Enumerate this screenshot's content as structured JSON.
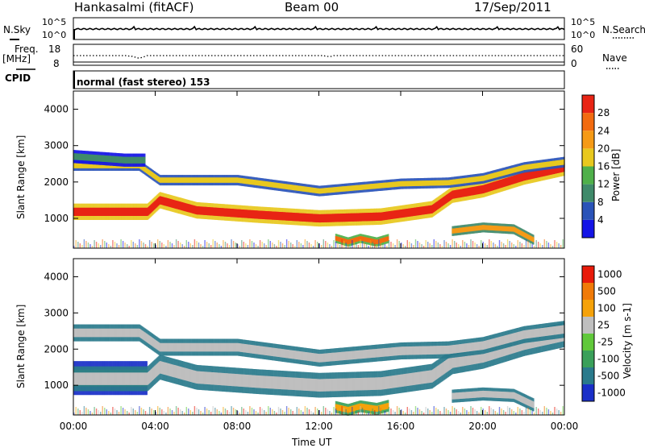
{
  "header": {
    "station": "Hankasalmi (fitACF)",
    "beam": "Beam 00",
    "date": "17/Sep/2011"
  },
  "nsky_panel": {
    "label": "N.Sky",
    "right_label": "N.Search",
    "tick_top": "10^5",
    "tick_bottom": "10^0"
  },
  "freq_panel": {
    "label_line1": "Freq.",
    "label_line2": "[MHz]",
    "tick_top": "18",
    "tick_bottom": "8",
    "nave_label": "Nave",
    "nave_tick_top": "60",
    "nave_tick_bottom": "0"
  },
  "cpid_panel": {
    "label": "CPID",
    "mode_text": "normal (fast stereo) 153"
  },
  "chart_data": [
    {
      "type": "heatmap",
      "name": "power",
      "ylabel": "Slant Range [km]",
      "yticks": [
        "1000",
        "2000",
        "3000",
        "4000"
      ],
      "ylim": [
        180,
        4500
      ],
      "colorbar_label": "Power [dB]",
      "colorbar_ticks": [
        "4",
        "8",
        "12",
        "16",
        "20",
        "24",
        "28"
      ],
      "colors": [
        "#1414e6",
        "#2a53b8",
        "#3f8a6a",
        "#4fb04a",
        "#e8c81e",
        "#f59a16",
        "#f26b10",
        "#e82414"
      ],
      "bands": [
        {
          "t": [
            0,
            3.6,
            4.2,
            6,
            9,
            12,
            15,
            17.5,
            18.5,
            20,
            22,
            24
          ],
          "r": [
            1180,
            1180,
            1500,
            1220,
            1100,
            1000,
            1050,
            1250,
            1650,
            1800,
            2150,
            2400
          ],
          "width": 250,
          "level": 7
        },
        {
          "t": [
            0,
            3.2,
            4.2,
            8,
            12,
            16,
            18.3,
            20,
            22,
            24
          ],
          "r": [
            2450,
            2450,
            2050,
            2050,
            1750,
            1950,
            1980,
            2100,
            2400,
            2550
          ],
          "width": 160,
          "level": 4
        },
        {
          "t": [
            18.5,
            20,
            21.5,
            22.5
          ],
          "r": [
            650,
            750,
            700,
            400
          ],
          "width": 150,
          "level": 5
        },
        {
          "t": [
            12.8,
            13.4,
            14,
            14.8,
            15.4
          ],
          "r": [
            450,
            350,
            450,
            350,
            450
          ],
          "width": 140,
          "level": 6
        },
        {
          "t": [
            0,
            2.5,
            3.5
          ],
          "r": [
            2700,
            2600,
            2600
          ],
          "width": 200,
          "level": 2
        }
      ]
    },
    {
      "type": "heatmap",
      "name": "velocity",
      "ylabel": "Slant Range [km]",
      "yticks": [
        "1000",
        "2000",
        "3000",
        "4000"
      ],
      "ylim": [
        180,
        4500
      ],
      "colorbar_label": "Velocity [m s-1]",
      "colorbar_ticks": [
        "1000",
        "500",
        "100",
        "25",
        "-25",
        "-100",
        "-500",
        "-1000"
      ],
      "colors": [
        "#1a2fc8",
        "#2a7a8c",
        "#3aa05a",
        "#60c83a",
        "#bfbfbf",
        "#f5a20a",
        "#f07a08",
        "#e81a0a"
      ],
      "bands": [
        {
          "t": [
            0,
            3.6
          ],
          "r": [
            1200,
            1200
          ],
          "width": 520,
          "level": 3
        },
        {
          "t": [
            0,
            3.6,
            4.2,
            6,
            9,
            12,
            15,
            17.5,
            18.5,
            20,
            22,
            24
          ],
          "r": [
            1180,
            1180,
            1500,
            1220,
            1100,
            1000,
            1050,
            1250,
            1650,
            1800,
            2150,
            2400
          ],
          "width": 380,
          "level": 4
        },
        {
          "t": [
            0,
            3.2,
            4.2,
            8,
            12,
            16,
            18.3,
            20,
            22,
            24
          ],
          "r": [
            2450,
            2450,
            2050,
            2050,
            1750,
            1950,
            1980,
            2100,
            2400,
            2550
          ],
          "width": 260,
          "level": 4
        },
        {
          "t": [
            12.8,
            13.4,
            14,
            14.8,
            15.4
          ],
          "r": [
            400,
            320,
            420,
            350,
            440
          ],
          "width": 180,
          "level": 5
        },
        {
          "t": [
            18.5,
            20,
            21.5,
            22.5
          ],
          "r": [
            700,
            760,
            720,
            450
          ],
          "width": 200,
          "level": 4
        }
      ]
    }
  ],
  "time_axis": {
    "xlabel": "Time UT",
    "ticks": [
      "00:00",
      "04:00",
      "08:00",
      "12:00",
      "16:00",
      "20:00",
      "00:00"
    ],
    "xlim": [
      0,
      24
    ]
  }
}
